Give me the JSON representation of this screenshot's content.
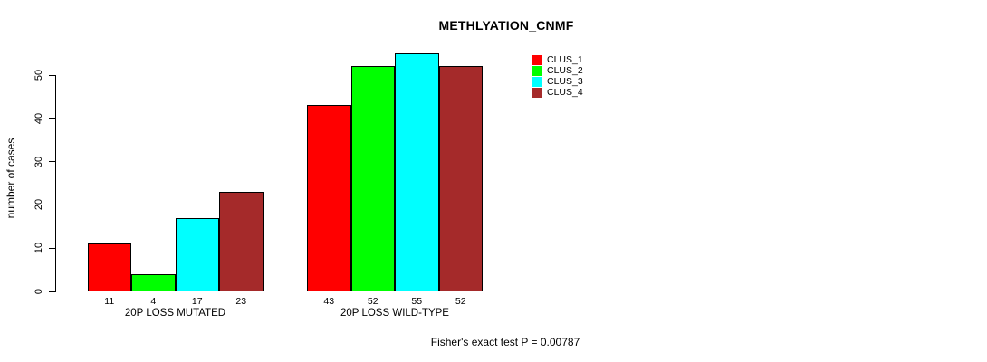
{
  "chart_data": {
    "type": "bar",
    "title": "METHLYATION_CNMF",
    "ylabel": "number of cases",
    "yticks": [
      0,
      10,
      20,
      30,
      40,
      50
    ],
    "ylim": [
      0,
      57
    ],
    "grid": false,
    "legend_position": "top-right",
    "categories": [
      "20P LOSS MUTATED",
      "20P LOSS WILD-TYPE"
    ],
    "series": [
      {
        "name": "CLUS_1",
        "color": "#FF0000",
        "values": [
          11,
          43
        ]
      },
      {
        "name": "CLUS_2",
        "color": "#00FF00",
        "values": [
          4,
          52
        ]
      },
      {
        "name": "CLUS_3",
        "color": "#00FFFF",
        "values": [
          17,
          55
        ]
      },
      {
        "name": "CLUS_4",
        "color": "#A52A2A",
        "values": [
          23,
          52
        ]
      }
    ],
    "bar_labels": [
      [
        11,
        4,
        17,
        23
      ],
      [
        43,
        52,
        55,
        52
      ]
    ],
    "footnote": "Fisher's exact test P = 0.00787",
    "axis_color": "#000000",
    "background_color": "#FFFFFF"
  }
}
